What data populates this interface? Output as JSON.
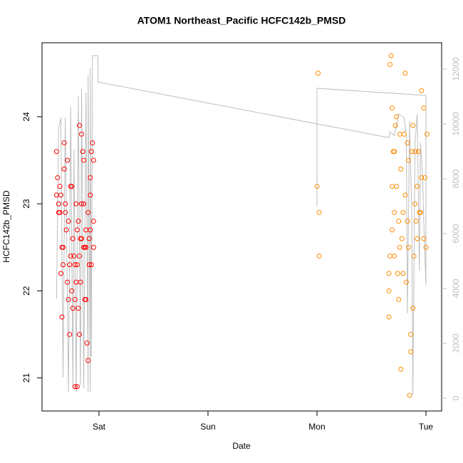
{
  "chart_data": {
    "type": "scatter",
    "title": "ATOM1 Northeast_Pacific HCFC142b_PMSD",
    "x_label": "Date",
    "y_label": "HCFC142b_PMSD",
    "xlim": [
      -0.523,
      3.144
    ],
    "xticks": [
      {
        "value": 0,
        "label": "Sat"
      },
      {
        "value": 1,
        "label": "Sun"
      },
      {
        "value": 2,
        "label": "Mon"
      },
      {
        "value": 3,
        "label": "Tue"
      }
    ],
    "ylim": [
      20.62,
      24.85
    ],
    "yticks": [
      21,
      22,
      23,
      24
    ],
    "y2lim": [
      -468,
      12961
    ],
    "y2ticks": [
      0,
      2000,
      4000,
      6000,
      8000,
      10000,
      12000
    ],
    "series": [
      {
        "kind": "line",
        "axis": "y2",
        "color": "#bebebe",
        "x": [
          -0.39,
          -0.37,
          -0.35,
          -0.33,
          -0.31,
          -0.28,
          -0.26,
          -0.24,
          -0.23,
          -0.21,
          -0.19,
          -0.17,
          -0.16,
          -0.14,
          -0.12,
          -0.1,
          -0.1,
          -0.08,
          -0.08,
          -0.07,
          -0.06,
          -0.01,
          -0.01,
          2.66,
          2.67,
          2.71,
          2.75,
          2.8,
          2.82,
          2.83,
          2.85,
          2.87,
          2.88,
          2.9,
          2.92,
          2.94,
          2.95,
          2.97,
          2.98,
          3.0,
          3.0,
          2.0,
          2.0
        ],
        "values": [
          3610,
          9840,
          10230,
          750,
          10230,
          230,
          10620,
          360,
          9060,
          230,
          11010,
          490,
          11270,
          360,
          11140,
          230,
          11790,
          230,
          12050,
          1530,
          12490,
          12490,
          11530,
          9500,
          9710,
          9580,
          10360,
          10230,
          9580,
          3090,
          10100,
          6730,
          100,
          9320,
          10360,
          4650,
          9320,
          8020,
          6470,
          4130,
          11040,
          11300,
          6990
        ]
      },
      {
        "kind": "points",
        "color": "#ff0000",
        "x": [
          -0.39,
          -0.39,
          -0.38,
          -0.37,
          -0.37,
          -0.36,
          -0.36,
          -0.35,
          -0.35,
          -0.34,
          -0.34,
          -0.33,
          -0.33,
          -0.32,
          -0.32,
          -0.31,
          -0.31,
          -0.3,
          -0.29,
          -0.29,
          -0.28,
          -0.27,
          -0.27,
          -0.26,
          -0.26,
          -0.25,
          -0.25,
          -0.24,
          -0.24,
          -0.23,
          -0.22,
          -0.22,
          -0.22,
          -0.21,
          -0.21,
          -0.2,
          -0.2,
          -0.2,
          -0.19,
          -0.19,
          -0.18,
          -0.18,
          -0.18,
          -0.17,
          -0.17,
          -0.16,
          -0.16,
          -0.16,
          -0.15,
          -0.14,
          -0.14,
          -0.14,
          -0.13,
          -0.13,
          -0.12,
          -0.12,
          -0.12,
          -0.11,
          -0.1,
          -0.1,
          -0.09,
          -0.09,
          -0.08,
          -0.08,
          -0.08,
          -0.07,
          -0.07,
          -0.06,
          -0.05,
          -0.05,
          -0.05,
          -0.28
        ],
        "values": [
          23.6,
          23.1,
          23.3,
          22.9,
          23.0,
          23.2,
          22.9,
          23.1,
          22.2,
          22.5,
          21.7,
          22.3,
          22.5,
          23.4,
          23.7,
          22.9,
          23.0,
          22.7,
          22.1,
          23.5,
          22.8,
          21.5,
          22.3,
          23.2,
          22.4,
          23.2,
          22.0,
          22.6,
          21.8,
          22.4,
          22.3,
          20.9,
          21.9,
          22.1,
          23.0,
          22.7,
          20.9,
          22.3,
          22.8,
          21.8,
          22.4,
          23.9,
          21.5,
          22.6,
          22.1,
          23.8,
          22.6,
          23.0,
          23.6,
          23.0,
          23.5,
          22.5,
          21.9,
          22.5,
          22.7,
          22.5,
          21.9,
          21.4,
          21.2,
          22.9,
          22.6,
          22.3,
          23.1,
          22.7,
          23.3,
          22.3,
          23.6,
          23.7,
          22.8,
          22.5,
          23.5,
          21.9
        ]
      },
      {
        "kind": "points",
        "color": "#ff8c00",
        "x": [
          2.01,
          2.0,
          2.02,
          2.02,
          2.66,
          2.66,
          2.66,
          2.67,
          2.67,
          2.68,
          2.69,
          2.69,
          2.69,
          2.7,
          2.71,
          2.71,
          2.71,
          2.72,
          2.73,
          2.73,
          2.74,
          2.75,
          2.75,
          2.76,
          2.76,
          2.77,
          2.77,
          2.78,
          2.79,
          2.79,
          2.8,
          2.81,
          2.81,
          2.82,
          2.83,
          2.83,
          2.84,
          2.84,
          2.85,
          2.86,
          2.86,
          2.87,
          2.88,
          2.88,
          2.89,
          2.9,
          2.9,
          2.91,
          2.92,
          2.92,
          2.93,
          2.94,
          2.95,
          2.96,
          2.96,
          2.98,
          2.98,
          2.99,
          3.0,
          3.01
        ],
        "values": [
          24.5,
          23.2,
          22.9,
          22.4,
          22.0,
          21.7,
          22.2,
          22.4,
          24.6,
          24.7,
          23.2,
          22.7,
          24.1,
          23.6,
          22.9,
          23.6,
          22.4,
          23.9,
          24.0,
          23.2,
          22.2,
          22.8,
          21.9,
          22.5,
          23.8,
          21.1,
          23.4,
          22.6,
          22.2,
          22.9,
          23.8,
          23.1,
          24.5,
          22.1,
          23.7,
          22.8,
          22.5,
          23.5,
          20.8,
          21.5,
          21.3,
          23.6,
          21.8,
          23.9,
          22.4,
          23.6,
          23.0,
          22.8,
          23.2,
          22.6,
          23.6,
          22.9,
          22.9,
          23.3,
          24.3,
          24.1,
          22.6,
          23.3,
          22.5,
          23.8
        ]
      }
    ]
  }
}
